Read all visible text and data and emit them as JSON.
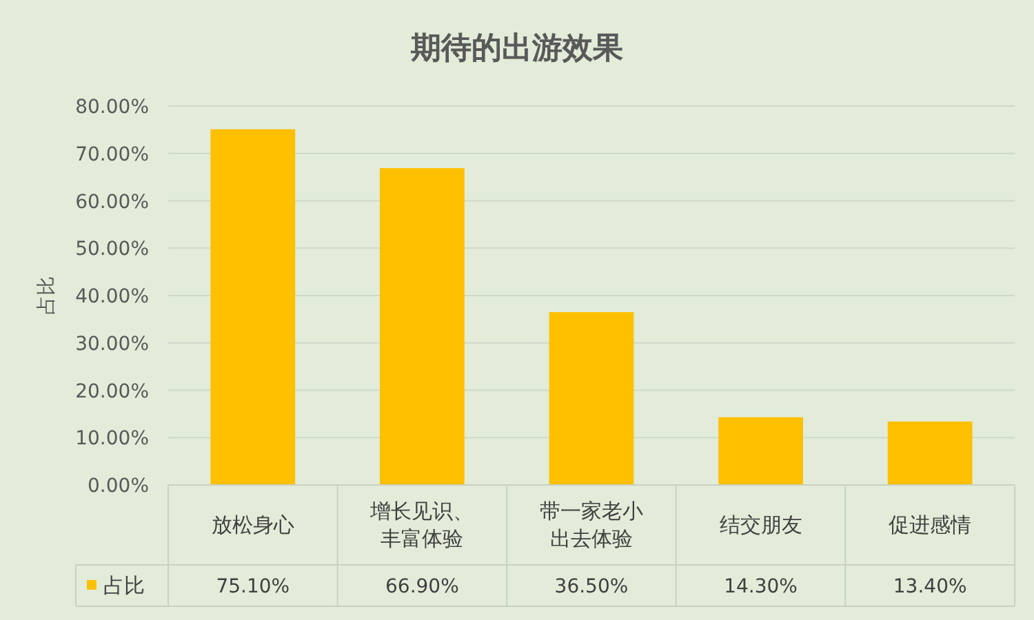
{
  "chart_data": {
    "type": "bar",
    "title": "期待的出游效果",
    "ylabel": "占比",
    "categories": [
      "放松身心",
      "增长见识、丰富体验",
      "带一家老小出去体验",
      "结交朋友",
      "促进感情"
    ],
    "series": [
      {
        "name": "占比",
        "color": "#ffc000",
        "values": [
          75.1,
          66.9,
          36.5,
          14.3,
          13.4
        ],
        "value_labels": [
          "75.10%",
          "66.90%",
          "36.50%",
          "14.30%",
          "13.40%"
        ]
      }
    ],
    "ylim": [
      0,
      80
    ],
    "yticks": [
      {
        "value": 0,
        "label": "0.00%"
      },
      {
        "value": 10,
        "label": "10.00%"
      },
      {
        "value": 20,
        "label": "20.00%"
      },
      {
        "value": 30,
        "label": "30.00%"
      },
      {
        "value": 40,
        "label": "40.00%"
      },
      {
        "value": 50,
        "label": "50.00%"
      },
      {
        "value": 60,
        "label": "60.00%"
      },
      {
        "value": 70,
        "label": "70.00%"
      },
      {
        "value": 80,
        "label": "80.00%"
      }
    ],
    "grid": "y",
    "legend": "bottom"
  }
}
